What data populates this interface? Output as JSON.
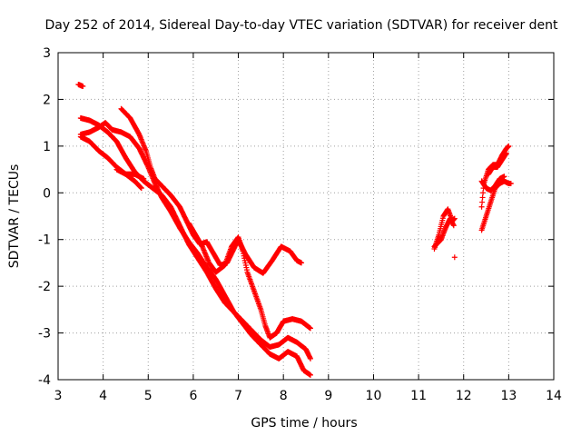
{
  "chart_data": {
    "type": "scatter",
    "title": "Day 252 of 2014, Sidereal Day-to-day VTEC variation (SDTVAR) for receiver dent",
    "xlabel": "GPS time / hours",
    "ylabel": "SDTVAR / TECUs",
    "xlim": [
      3,
      14
    ],
    "ylim": [
      -4,
      3
    ],
    "xticks": [
      "3",
      "4",
      "5",
      "6",
      "7",
      "8",
      "9",
      "10",
      "11",
      "12",
      "13",
      "14"
    ],
    "yticks": [
      "3",
      "2",
      "1",
      "0",
      "-1",
      "-2",
      "-3",
      "-4"
    ],
    "grid": true,
    "marker": "+",
    "color": "#ff0000",
    "tracks": [
      [
        [
          3.45,
          2.32
        ],
        [
          3.55,
          2.28
        ]
      ],
      [
        [
          3.5,
          1.6
        ],
        [
          3.7,
          1.55
        ],
        [
          3.9,
          1.45
        ],
        [
          4.1,
          1.3
        ],
        [
          4.3,
          1.1
        ],
        [
          4.5,
          0.75
        ],
        [
          4.7,
          0.45
        ],
        [
          4.9,
          0.25
        ],
        [
          5.1,
          0.1
        ],
        [
          5.3,
          -0.05
        ],
        [
          5.5,
          -0.3
        ],
        [
          5.7,
          -0.7
        ],
        [
          5.9,
          -1.1
        ],
        [
          6.1,
          -1.4
        ],
        [
          6.3,
          -1.7
        ],
        [
          6.5,
          -2.05
        ],
        [
          6.7,
          -2.35
        ],
        [
          6.9,
          -2.55
        ],
        [
          7.1,
          -2.75
        ],
        [
          7.3,
          -2.95
        ],
        [
          7.5,
          -3.15
        ],
        [
          7.7,
          -3.3
        ],
        [
          7.9,
          -3.25
        ],
        [
          8.1,
          -3.1
        ],
        [
          8.3,
          -3.2
        ],
        [
          8.5,
          -3.35
        ],
        [
          8.6,
          -3.55
        ]
      ],
      [
        [
          3.5,
          1.25
        ],
        [
          3.7,
          1.3
        ],
        [
          3.9,
          1.4
        ],
        [
          4.05,
          1.5
        ],
        [
          4.2,
          1.35
        ],
        [
          4.4,
          1.3
        ],
        [
          4.6,
          1.2
        ],
        [
          4.8,
          0.95
        ],
        [
          5.0,
          0.55
        ],
        [
          5.15,
          0.2
        ],
        [
          5.3,
          -0.1
        ],
        [
          5.5,
          -0.4
        ],
        [
          5.7,
          -0.75
        ],
        [
          5.9,
          -1.05
        ],
        [
          6.1,
          -1.3
        ],
        [
          6.3,
          -1.6
        ],
        [
          6.5,
          -1.85
        ],
        [
          6.7,
          -2.2
        ],
        [
          6.9,
          -2.55
        ],
        [
          7.1,
          -2.8
        ],
        [
          7.3,
          -3.05
        ],
        [
          7.5,
          -3.25
        ],
        [
          7.7,
          -3.45
        ],
        [
          7.9,
          -3.55
        ],
        [
          8.1,
          -3.4
        ],
        [
          8.3,
          -3.5
        ],
        [
          8.45,
          -3.8
        ],
        [
          8.6,
          -3.9
        ]
      ],
      [
        [
          3.5,
          1.2
        ],
        [
          3.7,
          1.1
        ],
        [
          3.9,
          0.9
        ],
        [
          4.1,
          0.75
        ],
        [
          4.3,
          0.55
        ],
        [
          4.5,
          0.4
        ],
        [
          4.7,
          0.25
        ],
        [
          4.85,
          0.1
        ]
      ],
      [
        [
          4.3,
          0.5
        ],
        [
          4.5,
          0.4
        ],
        [
          4.7,
          0.4
        ],
        [
          4.9,
          0.3
        ]
      ],
      [
        [
          4.4,
          1.8
        ],
        [
          4.6,
          1.6
        ],
        [
          4.8,
          1.25
        ],
        [
          4.95,
          0.9
        ],
        [
          5.05,
          0.55
        ],
        [
          5.15,
          0.3
        ],
        [
          5.3,
          0.15
        ],
        [
          5.5,
          -0.05
        ],
        [
          5.7,
          -0.3
        ],
        [
          5.85,
          -0.6
        ],
        [
          6.0,
          -0.9
        ],
        [
          6.15,
          -1.1
        ],
        [
          6.3,
          -1.05
        ],
        [
          6.45,
          -1.3
        ],
        [
          6.6,
          -1.55
        ],
        [
          6.75,
          -1.5
        ],
        [
          6.9,
          -1.2
        ],
        [
          7.0,
          -1.0
        ],
        [
          7.15,
          -1.3
        ],
        [
          7.35,
          -1.6
        ],
        [
          7.55,
          -1.72
        ],
        [
          7.75,
          -1.45
        ],
        [
          7.95,
          -1.15
        ],
        [
          8.15,
          -1.25
        ],
        [
          8.3,
          -1.45
        ],
        [
          8.4,
          -1.5
        ]
      ],
      [
        [
          5.9,
          -0.65
        ],
        [
          6.05,
          -0.9
        ],
        [
          6.2,
          -1.15
        ],
        [
          6.35,
          -1.5
        ],
        [
          6.5,
          -1.7
        ],
        [
          6.7,
          -1.55
        ],
        [
          6.85,
          -1.15
        ],
        [
          7.0,
          -0.95
        ],
        [
          7.1,
          -1.25
        ],
        [
          7.2,
          -1.7
        ],
        [
          7.35,
          -2.1
        ],
        [
          7.5,
          -2.5
        ],
        [
          7.6,
          -2.85
        ],
        [
          7.7,
          -3.1
        ],
        [
          7.85,
          -3.0
        ],
        [
          8.0,
          -2.75
        ],
        [
          8.2,
          -2.7
        ],
        [
          8.4,
          -2.75
        ],
        [
          8.6,
          -2.9
        ]
      ],
      [
        [
          11.35,
          -1.2
        ],
        [
          11.45,
          -0.9
        ],
        [
          11.55,
          -0.5
        ],
        [
          11.65,
          -0.35
        ],
        [
          11.75,
          -0.6
        ],
        [
          11.8,
          -0.55
        ]
      ],
      [
        [
          11.35,
          -1.15
        ],
        [
          11.5,
          -1.0
        ],
        [
          11.6,
          -0.75
        ],
        [
          11.7,
          -0.55
        ],
        [
          11.78,
          -0.7
        ]
      ],
      [
        [
          11.8,
          -1.38
        ]
      ],
      [
        [
          12.4,
          -0.8
        ],
        [
          12.5,
          -0.5
        ],
        [
          12.6,
          -0.2
        ],
        [
          12.7,
          0.1
        ],
        [
          12.8,
          0.2
        ],
        [
          12.9,
          0.25
        ],
        [
          13.0,
          0.2
        ],
        [
          13.05,
          0.2
        ]
      ],
      [
        [
          12.4,
          0.25
        ],
        [
          12.5,
          0.1
        ],
        [
          12.6,
          0.05
        ],
        [
          12.7,
          0.15
        ],
        [
          12.8,
          0.3
        ],
        [
          12.9,
          0.35
        ]
      ],
      [
        [
          12.4,
          -0.3
        ],
        [
          12.45,
          0.2
        ],
        [
          12.55,
          0.5
        ],
        [
          12.65,
          0.6
        ],
        [
          12.75,
          0.6
        ],
        [
          12.85,
          0.8
        ],
        [
          12.95,
          0.95
        ],
        [
          13.0,
          1.0
        ]
      ],
      [
        [
          12.55,
          0.4
        ],
        [
          12.65,
          0.55
        ],
        [
          12.75,
          0.55
        ],
        [
          12.85,
          0.7
        ],
        [
          12.95,
          0.85
        ]
      ]
    ]
  }
}
